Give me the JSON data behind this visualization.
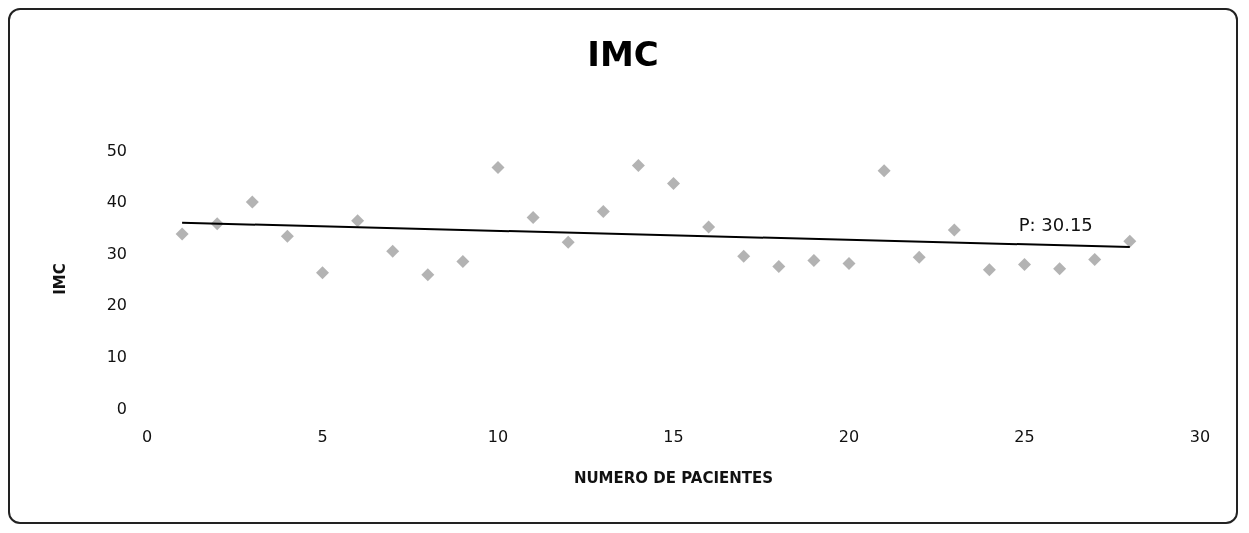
{
  "chart_data": {
    "type": "scatter",
    "title": "IMC",
    "xlabel": "NUMERO DE PACIENTES",
    "ylabel": "IMC",
    "marker": "diamond",
    "grid": false,
    "xlim": [
      0,
      30
    ],
    "xticks": [
      0,
      5,
      10,
      15,
      20,
      25,
      30
    ],
    "ylim": [
      0,
      50
    ],
    "yticks": [
      0,
      10,
      20,
      30,
      40,
      50
    ],
    "series": [
      {
        "color": "#a0a0a0",
        "x": [
          1,
          2,
          3,
          4,
          5,
          6,
          7,
          8,
          9,
          10,
          11,
          12,
          13,
          14,
          15,
          16,
          17,
          18,
          19,
          20,
          21,
          22,
          23,
          24,
          25,
          26,
          27,
          28
        ],
        "values": [
          33.7,
          35.7,
          39.9,
          33.3,
          26.2,
          36.3,
          30.4,
          25.8,
          28.4,
          46.6,
          36.9,
          32.1,
          38.1,
          47.0,
          43.5,
          35.1,
          29.4,
          27.4,
          28.6,
          28.0,
          46.0,
          29.2,
          34.5,
          26.8,
          27.8,
          27.0,
          28.8,
          32.3
        ]
      },
      {
        "type": "line",
        "color": "#000000",
        "marker": "none",
        "line_style": "solid",
        "x": [
          1,
          28
        ],
        "values": [
          35.9,
          31.2
        ]
      }
    ],
    "annotations": [
      "P: 30.15"
    ]
  }
}
